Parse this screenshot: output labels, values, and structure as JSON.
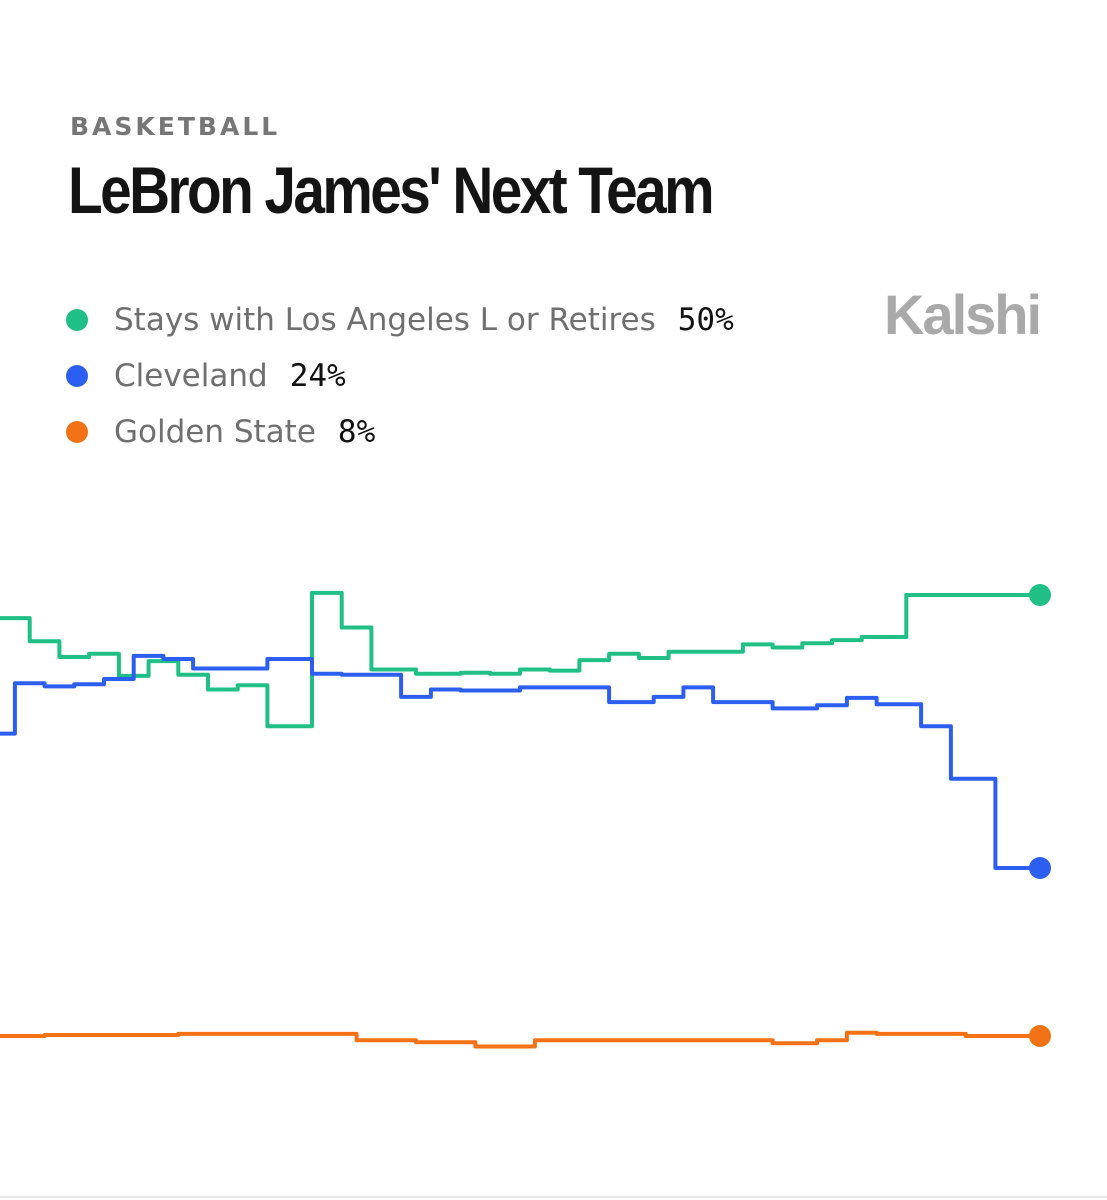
{
  "header": {
    "category": "BASKETBALL",
    "title": "LeBron James' Next Team",
    "brand": "Kalshi"
  },
  "legend": [
    {
      "name": "Stays with Los Angeles L or Retires",
      "value": "50%",
      "color": "#1fbf85"
    },
    {
      "name": "Cleveland",
      "value": "24%",
      "color": "#2c5ff0"
    },
    {
      "name": "Golden State",
      "value": "8%",
      "color": "#f47216"
    }
  ],
  "chart_data": {
    "type": "line",
    "step": true,
    "ylim": [
      0,
      60
    ],
    "grid": false,
    "x": [
      0,
      1,
      2,
      3,
      4,
      5,
      6,
      7,
      8,
      9,
      10,
      11,
      12,
      13,
      14,
      15,
      16,
      17,
      18,
      19,
      20,
      21,
      22,
      23,
      24,
      25,
      26,
      27,
      28,
      29,
      30,
      31,
      32,
      33,
      34,
      35,
      36,
      37,
      38,
      39,
      40,
      41,
      42,
      43,
      44,
      45,
      46,
      47,
      48,
      49,
      50,
      51,
      52,
      53,
      54,
      55,
      56,
      57,
      58,
      59,
      60,
      61,
      62,
      63,
      64,
      65,
      66,
      67,
      68,
      69,
      70
    ],
    "series": [
      {
        "name": "Stays with Los Angeles L or Retires",
        "color": "#1fbf85",
        "values": [
          47.8,
          47.8,
          45.6,
          45.6,
          44.1,
          44.1,
          44.4,
          44.4,
          42.3,
          42.3,
          43.7,
          43.7,
          42.4,
          42.4,
          41.0,
          41.0,
          41.4,
          41.4,
          37.5,
          37.5,
          37.5,
          50.2,
          50.2,
          46.9,
          46.9,
          42.9,
          42.9,
          42.9,
          42.5,
          42.5,
          42.5,
          42.6,
          42.6,
          42.5,
          42.5,
          42.9,
          42.9,
          42.8,
          42.8,
          43.8,
          43.8,
          44.4,
          44.4,
          44.0,
          44.0,
          44.6,
          44.6,
          44.6,
          44.6,
          44.6,
          45.3,
          45.3,
          45.0,
          45.0,
          45.4,
          45.4,
          45.7,
          45.7,
          46.0,
          46.0,
          46.0,
          50.0,
          50.0,
          50.0,
          50.0,
          50.0,
          50.0,
          50.0,
          50.0,
          50.0,
          50.0
        ]
      },
      {
        "name": "Cleveland",
        "color": "#2c5ff0",
        "values": [
          36.8,
          41.6,
          41.6,
          41.3,
          41.3,
          41.5,
          41.5,
          42.0,
          42.0,
          44.2,
          44.2,
          43.9,
          43.9,
          43.0,
          43.0,
          43.0,
          43.0,
          43.0,
          43.9,
          43.9,
          43.9,
          42.5,
          42.5,
          42.4,
          42.4,
          42.4,
          42.4,
          40.3,
          40.3,
          41.0,
          41.0,
          40.9,
          40.9,
          40.9,
          40.9,
          41.2,
          41.2,
          41.2,
          41.2,
          41.2,
          41.2,
          39.8,
          39.8,
          39.8,
          40.3,
          40.3,
          41.2,
          41.2,
          39.8,
          39.8,
          39.8,
          39.8,
          39.2,
          39.2,
          39.2,
          39.5,
          39.5,
          40.2,
          40.2,
          39.6,
          39.6,
          39.6,
          37.5,
          37.5,
          32.5,
          32.5,
          32.5,
          24.0,
          24.0,
          24.0,
          24.0
        ]
      },
      {
        "name": "Golden State",
        "color": "#f47216",
        "values": [
          8.0,
          8.0,
          8.0,
          8.1,
          8.1,
          8.1,
          8.1,
          8.1,
          8.1,
          8.1,
          8.1,
          8.1,
          8.2,
          8.2,
          8.2,
          8.2,
          8.2,
          8.2,
          8.2,
          8.2,
          8.2,
          8.2,
          8.2,
          8.2,
          7.6,
          7.6,
          7.6,
          7.6,
          7.4,
          7.4,
          7.4,
          7.4,
          7.0,
          7.0,
          7.0,
          7.0,
          7.6,
          7.6,
          7.6,
          7.6,
          7.6,
          7.6,
          7.6,
          7.6,
          7.6,
          7.6,
          7.6,
          7.6,
          7.6,
          7.6,
          7.6,
          7.6,
          7.3,
          7.3,
          7.3,
          7.6,
          7.6,
          8.3,
          8.3,
          8.2,
          8.2,
          8.2,
          8.2,
          8.2,
          8.2,
          8.0,
          8.0,
          8.0,
          8.0,
          8.0,
          8.0
        ]
      }
    ]
  }
}
